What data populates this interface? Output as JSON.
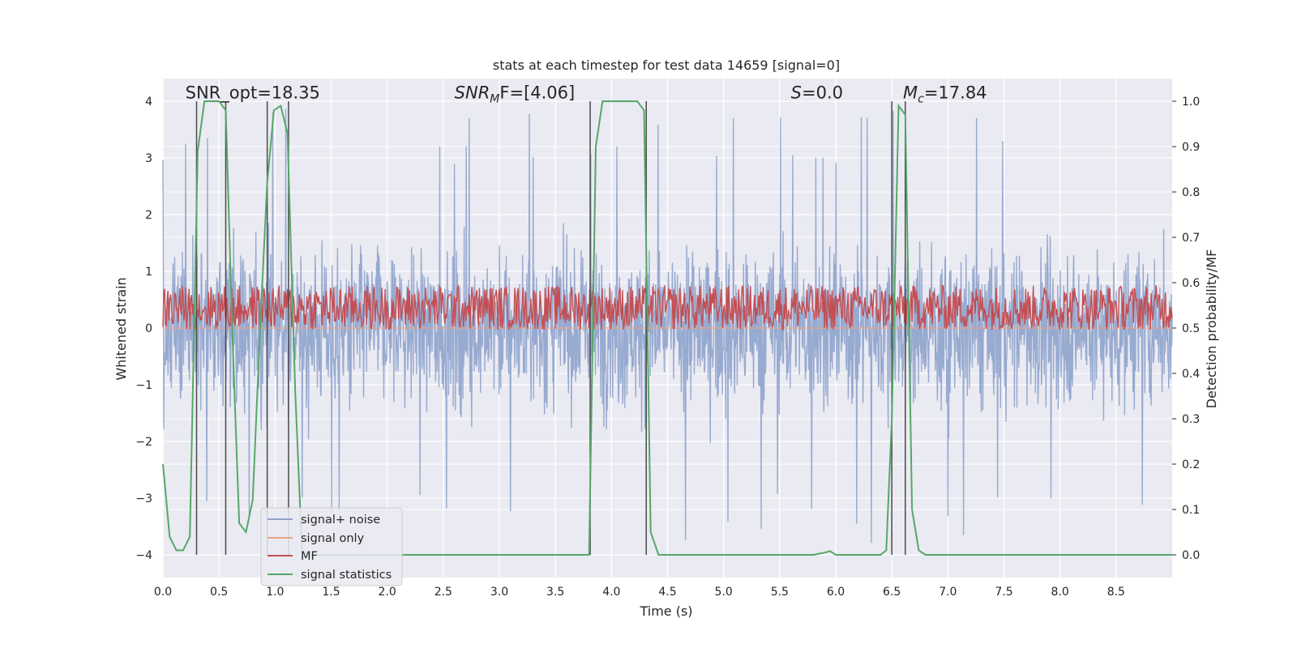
{
  "chart_data": {
    "type": "line",
    "title": "stats at each timestep for test data 14659 [signal=0]",
    "xlabel": "Time (s)",
    "ylabel_left": "Whitened strain",
    "ylabel_right": "Detection probability/MF",
    "xlim": [
      0.0,
      9.0
    ],
    "ylim_left": [
      -4.4,
      4.4
    ],
    "ylim_right": [
      -0.05,
      1.05
    ],
    "x_ticks": [
      "0.0",
      "0.5",
      "1.0",
      "1.5",
      "2.0",
      "2.5",
      "3.0",
      "3.5",
      "4.0",
      "4.5",
      "5.0",
      "5.5",
      "6.0",
      "6.5",
      "7.0",
      "7.5",
      "8.0",
      "8.5"
    ],
    "y_left_ticks": [
      "4",
      "3",
      "2",
      "1",
      "0",
      "−1",
      "−2",
      "−3",
      "−4"
    ],
    "y_right_ticks": [
      "1.0",
      "0.9",
      "0.8",
      "0.7",
      "0.6",
      "0.5",
      "0.4",
      "0.3",
      "0.2",
      "0.1",
      "0.0"
    ],
    "grid": true,
    "annotations": [
      {
        "text": "SNR_opt=18.35",
        "x": 0.2,
        "y": 4.15
      },
      {
        "text": "SNR",
        "sub": "M",
        "rest": "F=[4.06]",
        "x": 2.6,
        "y": 4.15
      },
      {
        "text": "S",
        "rest": "=0.0",
        "x": 5.6,
        "y": 4.15
      },
      {
        "text": "M",
        "sub": "c",
        "rest": "=17.84",
        "x": 6.6,
        "y": 4.15
      }
    ],
    "vertical_lines_x": [
      0.3,
      0.56,
      0.93,
      1.12,
      3.81,
      4.31,
      6.5,
      6.62
    ],
    "legend": {
      "position": "lower-left",
      "entries": [
        {
          "label": "signal+ noise",
          "color": "#8ea3cc"
        },
        {
          "label": "signal only",
          "color": "#e8a488"
        },
        {
          "label": "MF",
          "color": "#c44e52"
        },
        {
          "label": "signal statistics",
          "color": "#55a868"
        }
      ]
    },
    "series": [
      {
        "name": "signal+ noise",
        "axis": "left",
        "description_values": "noise band approx ±2, peaks to ±3.9",
        "envelope_typical": 2.0,
        "envelope_peak": 3.9
      },
      {
        "name": "signal only",
        "axis": "left",
        "values_constant": 0.0
      },
      {
        "name": "MF",
        "axis": "right",
        "band_min": 0.5,
        "band_max": 0.59
      },
      {
        "name": "signal statistics",
        "axis": "right",
        "x": [
          0.0,
          0.06,
          0.12,
          0.18,
          0.24,
          0.31,
          0.37,
          0.43,
          0.5,
          0.56,
          0.62,
          0.68,
          0.74,
          0.8,
          0.87,
          0.93,
          0.99,
          1.05,
          1.11,
          1.18,
          1.24,
          1.3,
          1.36,
          3.74,
          3.8,
          3.86,
          3.92,
          3.98,
          4.05,
          4.11,
          4.17,
          4.23,
          4.29,
          4.35,
          4.42,
          4.48,
          5.8,
          5.9,
          5.95,
          6.0,
          6.05,
          6.4,
          6.45,
          6.5,
          6.56,
          6.62,
          6.68,
          6.74,
          6.8,
          9.0
        ],
        "y": [
          0.2,
          0.04,
          0.01,
          0.01,
          0.04,
          0.89,
          1.0,
          1.0,
          1.0,
          0.98,
          0.48,
          0.07,
          0.05,
          0.12,
          0.52,
          0.82,
          0.98,
          0.99,
          0.93,
          0.36,
          0.01,
          0.0,
          0.0,
          0.0,
          0.0,
          0.9,
          1.0,
          1.0,
          1.0,
          1.0,
          1.0,
          1.0,
          0.98,
          0.05,
          0.0,
          0.0,
          0.0,
          0.005,
          0.008,
          0.0,
          0.0,
          0.0,
          0.01,
          0.3,
          0.99,
          0.97,
          0.1,
          0.01,
          0.0,
          0.0
        ]
      }
    ]
  },
  "colors": {
    "plot_bg": "#eaeaf2",
    "grid": "#ffffff",
    "noise": "#8ea3cc",
    "signal_only": "#e8a488",
    "mf": "#c44e52",
    "stats": "#55a868",
    "vline": "#4a4a4a"
  }
}
